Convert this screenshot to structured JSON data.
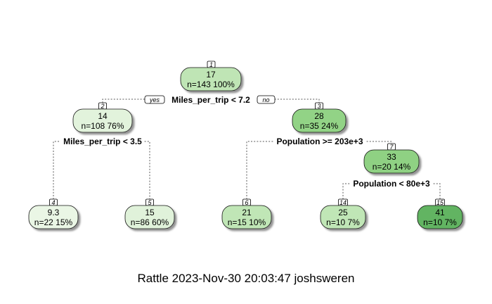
{
  "tree": {
    "nodes": [
      {
        "id": "1",
        "value": "17",
        "n": "n=143  100%",
        "color": "#bfe5b5"
      },
      {
        "id": "2",
        "value": "14",
        "n": "n=108  76%",
        "color": "#e2f3dc"
      },
      {
        "id": "3",
        "value": "28",
        "n": "n=35  24%",
        "color": "#92d386"
      },
      {
        "id": "4",
        "value": "9.3",
        "n": "n=22  15%",
        "color": "#eaf6e5"
      },
      {
        "id": "5",
        "value": "15",
        "n": "n=86  60%",
        "color": "#e0f2da"
      },
      {
        "id": "6",
        "value": "21",
        "n": "n=15  10%",
        "color": "#c0e6b6"
      },
      {
        "id": "7",
        "value": "33",
        "n": "n=20  14%",
        "color": "#8fd183"
      },
      {
        "id": "14",
        "value": "25",
        "n": "n=10  7%",
        "color": "#c0e6b6"
      },
      {
        "id": "15",
        "value": "41",
        "n": "n=10  7%",
        "color": "#62b462"
      }
    ],
    "splits": {
      "root": "Miles_per_trip < 7.2",
      "left": "Miles_per_trip < 3.5",
      "right": "Population >= 203e+3",
      "right2": "Population < 80e+3"
    },
    "yes_label": "yes",
    "no_label": "no"
  },
  "footer": "Rattle 2023-Nov-30 20:03:47 joshsweren"
}
